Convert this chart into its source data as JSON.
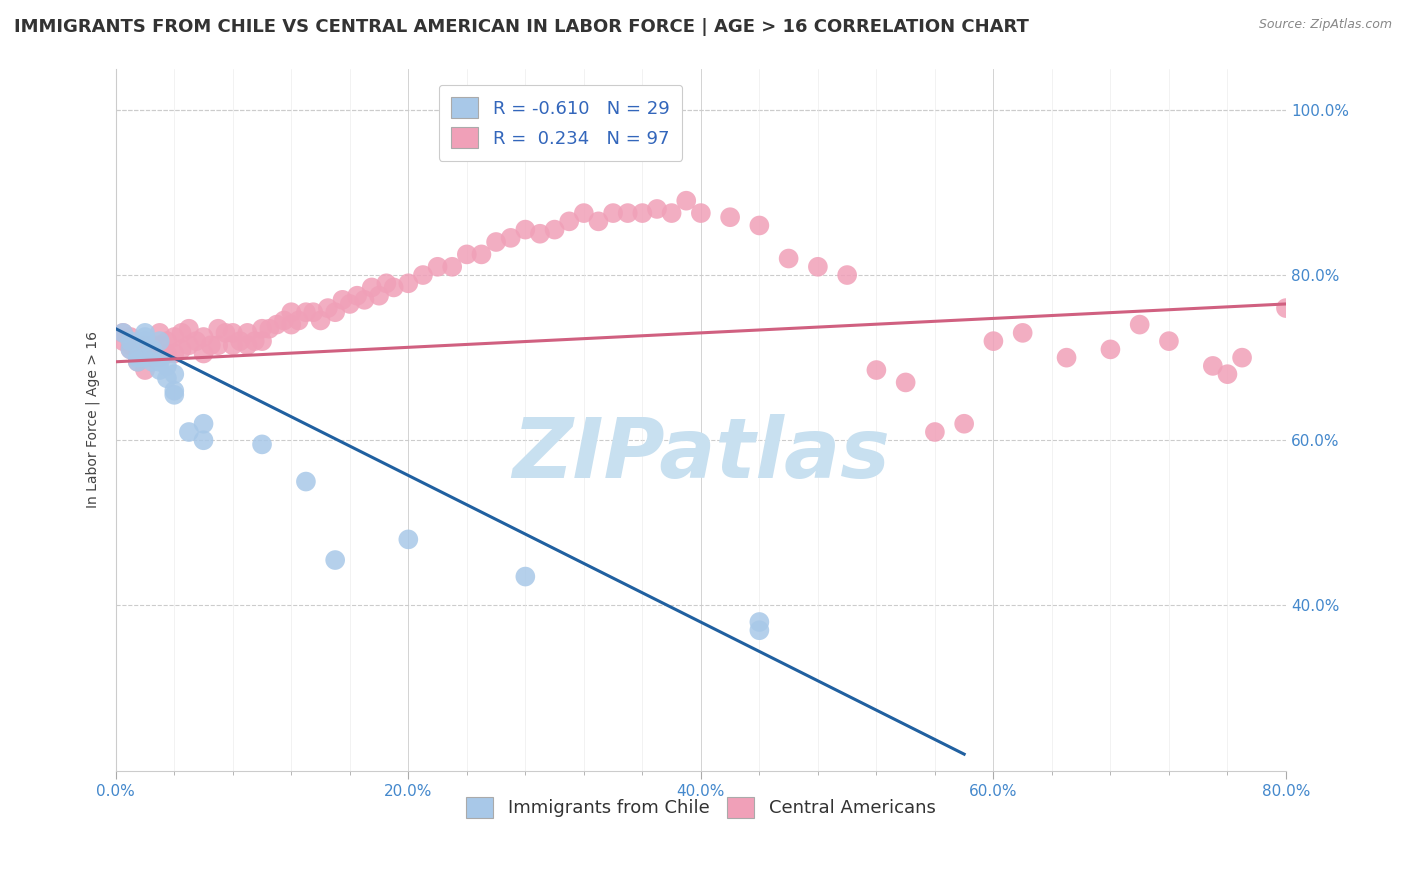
{
  "title": "IMMIGRANTS FROM CHILE VS CENTRAL AMERICAN IN LABOR FORCE | AGE > 16 CORRELATION CHART",
  "source": "Source: ZipAtlas.com",
  "ylabel": "In Labor Force | Age > 16",
  "xlim": [
    0.0,
    0.8
  ],
  "ylim": [
    0.2,
    1.05
  ],
  "xtick_labels": [
    "0.0%",
    "",
    "",
    "",
    "",
    "20.0%",
    "",
    "",
    "",
    "",
    "40.0%",
    "",
    "",
    "",
    "",
    "60.0%",
    "",
    "",
    "",
    "",
    "80.0%"
  ],
  "xtick_vals": [
    0.0,
    0.04,
    0.08,
    0.12,
    0.16,
    0.2,
    0.24,
    0.28,
    0.32,
    0.36,
    0.4,
    0.44,
    0.48,
    0.52,
    0.56,
    0.6,
    0.64,
    0.68,
    0.72,
    0.76,
    0.8
  ],
  "xtick_major_labels": [
    "0.0%",
    "20.0%",
    "40.0%",
    "60.0%",
    "80.0%"
  ],
  "xtick_major_vals": [
    0.0,
    0.2,
    0.4,
    0.6,
    0.8
  ],
  "ytick_labels": [
    "40.0%",
    "60.0%",
    "80.0%",
    "100.0%"
  ],
  "ytick_vals": [
    0.4,
    0.6,
    0.8,
    1.0
  ],
  "grid_color": "#cccccc",
  "background_color": "#ffffff",
  "watermark": "ZIPatlas",
  "watermark_color": "#c8e0f0",
  "chile_color": "#a8c8e8",
  "central_color": "#f0a0b8",
  "chile_R": -0.61,
  "chile_N": 29,
  "central_R": 0.234,
  "central_N": 97,
  "chile_line_color": "#2060a0",
  "central_line_color": "#d06080",
  "legend_fontsize": 13,
  "title_fontsize": 13,
  "tick_fontsize": 11,
  "chile_x": [
    0.005,
    0.01,
    0.01,
    0.015,
    0.015,
    0.02,
    0.02,
    0.02,
    0.02,
    0.025,
    0.025,
    0.03,
    0.03,
    0.03,
    0.035,
    0.035,
    0.04,
    0.04,
    0.04,
    0.05,
    0.06,
    0.06,
    0.1,
    0.13,
    0.15,
    0.2,
    0.28,
    0.44,
    0.44
  ],
  "chile_y": [
    0.73,
    0.71,
    0.72,
    0.695,
    0.7,
    0.7,
    0.72,
    0.725,
    0.73,
    0.695,
    0.71,
    0.685,
    0.695,
    0.72,
    0.675,
    0.69,
    0.655,
    0.66,
    0.68,
    0.61,
    0.62,
    0.6,
    0.595,
    0.55,
    0.455,
    0.48,
    0.435,
    0.38,
    0.37
  ],
  "central_x": [
    0.005,
    0.005,
    0.01,
    0.01,
    0.01,
    0.015,
    0.015,
    0.02,
    0.02,
    0.02,
    0.025,
    0.025,
    0.03,
    0.03,
    0.03,
    0.035,
    0.035,
    0.04,
    0.04,
    0.045,
    0.045,
    0.05,
    0.05,
    0.055,
    0.06,
    0.06,
    0.065,
    0.07,
    0.07,
    0.075,
    0.08,
    0.08,
    0.085,
    0.09,
    0.09,
    0.095,
    0.1,
    0.1,
    0.105,
    0.11,
    0.115,
    0.12,
    0.12,
    0.125,
    0.13,
    0.135,
    0.14,
    0.145,
    0.15,
    0.155,
    0.16,
    0.165,
    0.17,
    0.175,
    0.18,
    0.185,
    0.19,
    0.2,
    0.21,
    0.22,
    0.23,
    0.24,
    0.25,
    0.26,
    0.27,
    0.28,
    0.29,
    0.3,
    0.31,
    0.32,
    0.33,
    0.34,
    0.35,
    0.36,
    0.37,
    0.38,
    0.39,
    0.4,
    0.42,
    0.44,
    0.46,
    0.48,
    0.5,
    0.52,
    0.54,
    0.56,
    0.58,
    0.6,
    0.62,
    0.65,
    0.68,
    0.7,
    0.72,
    0.75,
    0.76,
    0.77,
    0.8
  ],
  "central_y": [
    0.72,
    0.73,
    0.71,
    0.715,
    0.725,
    0.695,
    0.71,
    0.685,
    0.7,
    0.715,
    0.7,
    0.715,
    0.7,
    0.715,
    0.73,
    0.705,
    0.72,
    0.705,
    0.725,
    0.71,
    0.73,
    0.715,
    0.735,
    0.72,
    0.705,
    0.725,
    0.715,
    0.715,
    0.735,
    0.73,
    0.715,
    0.73,
    0.72,
    0.715,
    0.73,
    0.72,
    0.72,
    0.735,
    0.735,
    0.74,
    0.745,
    0.74,
    0.755,
    0.745,
    0.755,
    0.755,
    0.745,
    0.76,
    0.755,
    0.77,
    0.765,
    0.775,
    0.77,
    0.785,
    0.775,
    0.79,
    0.785,
    0.79,
    0.8,
    0.81,
    0.81,
    0.825,
    0.825,
    0.84,
    0.845,
    0.855,
    0.85,
    0.855,
    0.865,
    0.875,
    0.865,
    0.875,
    0.875,
    0.875,
    0.88,
    0.875,
    0.89,
    0.875,
    0.87,
    0.86,
    0.82,
    0.81,
    0.8,
    0.685,
    0.67,
    0.61,
    0.62,
    0.72,
    0.73,
    0.7,
    0.71,
    0.74,
    0.72,
    0.69,
    0.68,
    0.7,
    0.76
  ],
  "chile_line_x": [
    0.0,
    0.58
  ],
  "chile_line_y": [
    0.735,
    0.22
  ],
  "central_line_x": [
    0.0,
    0.8
  ],
  "central_line_y": [
    0.695,
    0.765
  ]
}
